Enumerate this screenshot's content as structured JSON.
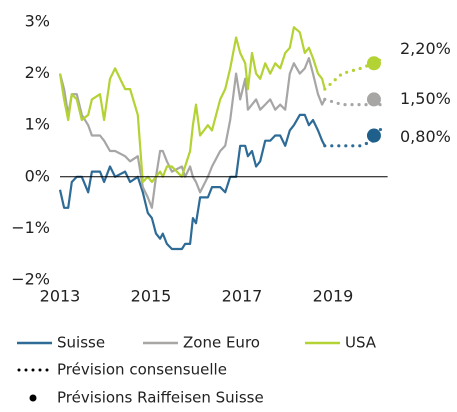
{
  "chart_data": {
    "type": "line",
    "x": [
      2013.0,
      2013.09,
      2013.18,
      2013.26,
      2013.37,
      2013.48,
      2013.62,
      2013.7,
      2013.88,
      2013.97,
      2014.1,
      2014.21,
      2014.43,
      2014.54,
      2014.71,
      2014.82,
      2014.93,
      2015.02,
      2015.11,
      2015.2,
      2015.26,
      2015.35,
      2015.46,
      2015.68,
      2015.75,
      2015.86,
      2015.92,
      2015.99,
      2016.08,
      2016.25,
      2016.34,
      2016.52,
      2016.63,
      2016.74,
      2016.87,
      2016.96,
      2017.07,
      2017.13,
      2017.22,
      2017.31,
      2017.4,
      2017.51,
      2017.62,
      2017.73,
      2017.84,
      2017.95,
      2018.05,
      2018.14,
      2018.27,
      2018.38,
      2018.47,
      2018.56,
      2018.67,
      2018.76,
      2018.82
    ],
    "series": [
      {
        "name": "Suisse",
        "color": "#2e6b96",
        "values": [
          -0.25,
          -0.6,
          -0.6,
          -0.1,
          0.0,
          0.0,
          -0.3,
          0.1,
          0.1,
          -0.1,
          0.2,
          0.0,
          0.1,
          -0.1,
          0.0,
          -0.3,
          -0.7,
          -0.8,
          -1.1,
          -1.2,
          -1.1,
          -1.3,
          -1.4,
          -1.4,
          -1.3,
          -1.3,
          -0.8,
          -0.9,
          -0.4,
          -0.4,
          -0.2,
          -0.2,
          -0.3,
          0.0,
          0.0,
          0.6,
          0.6,
          0.4,
          0.5,
          0.2,
          0.3,
          0.7,
          0.7,
          0.8,
          0.8,
          0.6,
          0.9,
          1.0,
          1.2,
          1.2,
          1.0,
          1.1,
          0.9,
          0.7,
          0.6
        ]
      },
      {
        "name": "Zone Euro",
        "color": "#a8a5a5",
        "values": [
          2.0,
          1.7,
          1.2,
          1.6,
          1.6,
          1.2,
          1.0,
          0.8,
          0.8,
          0.7,
          0.5,
          0.5,
          0.4,
          0.3,
          0.4,
          -0.2,
          -0.4,
          -0.6,
          0.0,
          0.5,
          0.5,
          0.3,
          0.1,
          0.2,
          0.0,
          0.2,
          0.0,
          -0.1,
          -0.3,
          0.0,
          0.2,
          0.5,
          0.6,
          1.1,
          2.0,
          1.5,
          1.9,
          1.3,
          1.4,
          1.5,
          1.3,
          1.4,
          1.5,
          1.3,
          1.4,
          1.3,
          2.0,
          2.2,
          2.0,
          2.1,
          2.3,
          2.0,
          1.6,
          1.4,
          1.5
        ]
      },
      {
        "name": "USA",
        "color": "#b3d234",
        "values": [
          2.0,
          1.5,
          1.1,
          1.6,
          1.5,
          1.1,
          1.2,
          1.5,
          1.6,
          1.1,
          1.9,
          2.1,
          1.7,
          1.7,
          1.2,
          -0.1,
          0.0,
          -0.1,
          0.0,
          0.1,
          0.0,
          0.2,
          0.2,
          0.0,
          0.2,
          0.5,
          1.0,
          1.4,
          0.8,
          1.0,
          0.9,
          1.5,
          1.7,
          2.1,
          2.7,
          2.4,
          2.2,
          1.7,
          2.4,
          2.0,
          1.9,
          2.2,
          2.0,
          2.2,
          2.1,
          2.4,
          2.5,
          2.9,
          2.8,
          2.4,
          2.5,
          2.3,
          2.0,
          1.9,
          1.7
        ]
      }
    ],
    "forecast": {
      "name": "Prévision consensuelle",
      "x": [
        2018.82,
        2019.2,
        2019.6,
        2019.9,
        2020.1
      ],
      "series": [
        {
          "values": [
            0.6,
            0.6,
            0.6,
            0.7,
            1.0
          ]
        },
        {
          "values": [
            1.5,
            1.4,
            1.4,
            1.4,
            1.4
          ]
        },
        {
          "values": [
            1.7,
            2.0,
            2.1,
            2.2,
            2.3
          ]
        }
      ]
    },
    "raiffeisen": {
      "name": "Prévisions Raiffeisen Suisse",
      "x": 2019.9,
      "values": [
        0.8,
        1.5,
        2.2
      ],
      "value_labels": [
        "0,80%",
        "1,50%",
        "2,20%"
      ],
      "colors": [
        "#1f5f8b",
        "#a8a5a5",
        "#b3d234"
      ]
    },
    "xlim": [
      2013,
      2020.2
    ],
    "xticks": [
      2013,
      2015,
      2017,
      2019
    ],
    "ylim": [
      -2,
      3
    ],
    "yticks": [
      {
        "value": -2,
        "label": "−2%"
      },
      {
        "value": -1,
        "label": "−1%"
      },
      {
        "value": 0,
        "label": "0%"
      },
      {
        "value": 1,
        "label": "1%"
      },
      {
        "value": 2,
        "label": "2%"
      },
      {
        "value": 3,
        "label": "3%"
      }
    ],
    "grid": false,
    "zero_line": true
  }
}
